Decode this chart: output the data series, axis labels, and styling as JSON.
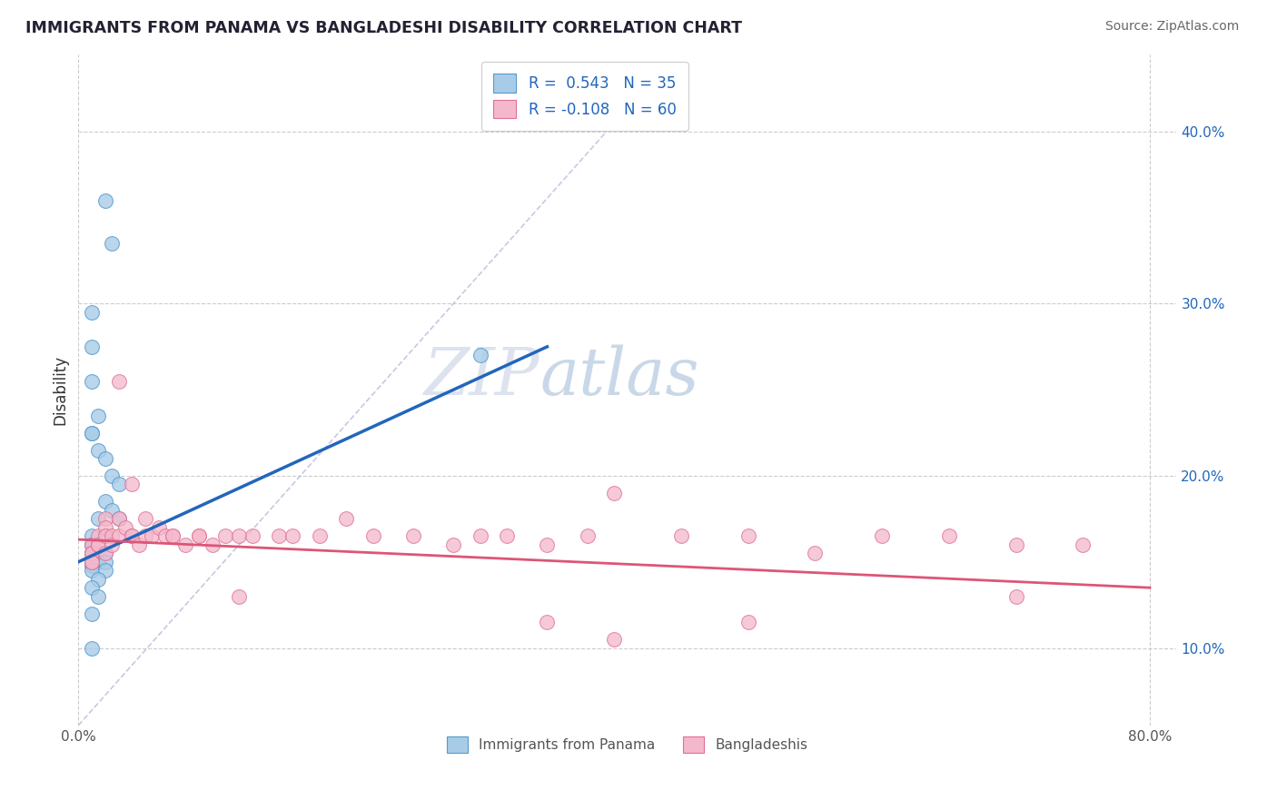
{
  "title": "IMMIGRANTS FROM PANAMA VS BANGLADESHI DISABILITY CORRELATION CHART",
  "source": "Source: ZipAtlas.com",
  "ylabel": "Disability",
  "xlim": [
    0.0,
    0.82
  ],
  "ylim": [
    0.055,
    0.445
  ],
  "yticks": [
    0.1,
    0.2,
    0.3,
    0.4
  ],
  "ytick_labels": [
    "10.0%",
    "20.0%",
    "30.0%",
    "40.0%"
  ],
  "legend_R1": "R =  0.543",
  "legend_N1": "N = 35",
  "legend_R2": "R = -0.108",
  "legend_N2": "N = 60",
  "series1_label": "Immigrants from Panama",
  "series2_label": "Bangladeshis",
  "series1_color": "#a8cce8",
  "series2_color": "#f4b8cc",
  "series1_edgecolor": "#5599cc",
  "series2_edgecolor": "#e07090",
  "line1_color": "#2266bb",
  "line2_color": "#dd5577",
  "refline_color": "#bbbbdd",
  "background_color": "#ffffff",
  "grid_color": "#cccccc",
  "panama_x": [
    0.02,
    0.025,
    0.01,
    0.01,
    0.01,
    0.015,
    0.01,
    0.01,
    0.015,
    0.02,
    0.025,
    0.03,
    0.02,
    0.025,
    0.03,
    0.015,
    0.02,
    0.01,
    0.01,
    0.01,
    0.01,
    0.015,
    0.02,
    0.015,
    0.01,
    0.02,
    0.01,
    0.01,
    0.02,
    0.015,
    0.01,
    0.015,
    0.01,
    0.3,
    0.01
  ],
  "panama_y": [
    0.36,
    0.335,
    0.295,
    0.275,
    0.255,
    0.235,
    0.225,
    0.225,
    0.215,
    0.21,
    0.2,
    0.195,
    0.185,
    0.18,
    0.175,
    0.175,
    0.165,
    0.165,
    0.16,
    0.16,
    0.155,
    0.155,
    0.155,
    0.15,
    0.15,
    0.15,
    0.148,
    0.145,
    0.145,
    0.14,
    0.135,
    0.13,
    0.12,
    0.27,
    0.1
  ],
  "bangla_x": [
    0.01,
    0.01,
    0.01,
    0.01,
    0.01,
    0.015,
    0.015,
    0.015,
    0.02,
    0.02,
    0.02,
    0.02,
    0.025,
    0.025,
    0.03,
    0.03,
    0.035,
    0.04,
    0.04,
    0.045,
    0.05,
    0.055,
    0.06,
    0.065,
    0.07,
    0.08,
    0.09,
    0.1,
    0.11,
    0.12,
    0.13,
    0.15,
    0.16,
    0.18,
    0.2,
    0.22,
    0.25,
    0.28,
    0.3,
    0.32,
    0.35,
    0.38,
    0.4,
    0.45,
    0.5,
    0.55,
    0.6,
    0.65,
    0.7,
    0.75,
    0.03,
    0.04,
    0.05,
    0.07,
    0.09,
    0.12,
    0.35,
    0.4,
    0.5,
    0.7
  ],
  "bangla_y": [
    0.16,
    0.155,
    0.155,
    0.15,
    0.15,
    0.165,
    0.16,
    0.16,
    0.175,
    0.17,
    0.165,
    0.155,
    0.165,
    0.16,
    0.175,
    0.165,
    0.17,
    0.165,
    0.165,
    0.16,
    0.165,
    0.165,
    0.17,
    0.165,
    0.165,
    0.16,
    0.165,
    0.16,
    0.165,
    0.165,
    0.165,
    0.165,
    0.165,
    0.165,
    0.175,
    0.165,
    0.165,
    0.16,
    0.165,
    0.165,
    0.16,
    0.165,
    0.19,
    0.165,
    0.165,
    0.155,
    0.165,
    0.165,
    0.16,
    0.16,
    0.255,
    0.195,
    0.175,
    0.165,
    0.165,
    0.13,
    0.115,
    0.105,
    0.115,
    0.13
  ],
  "line1_x0": 0.0,
  "line1_x1": 0.35,
  "line1_y0": 0.15,
  "line1_y1": 0.275,
  "line2_x0": 0.0,
  "line2_x1": 0.8,
  "line2_y0": 0.163,
  "line2_y1": 0.135
}
